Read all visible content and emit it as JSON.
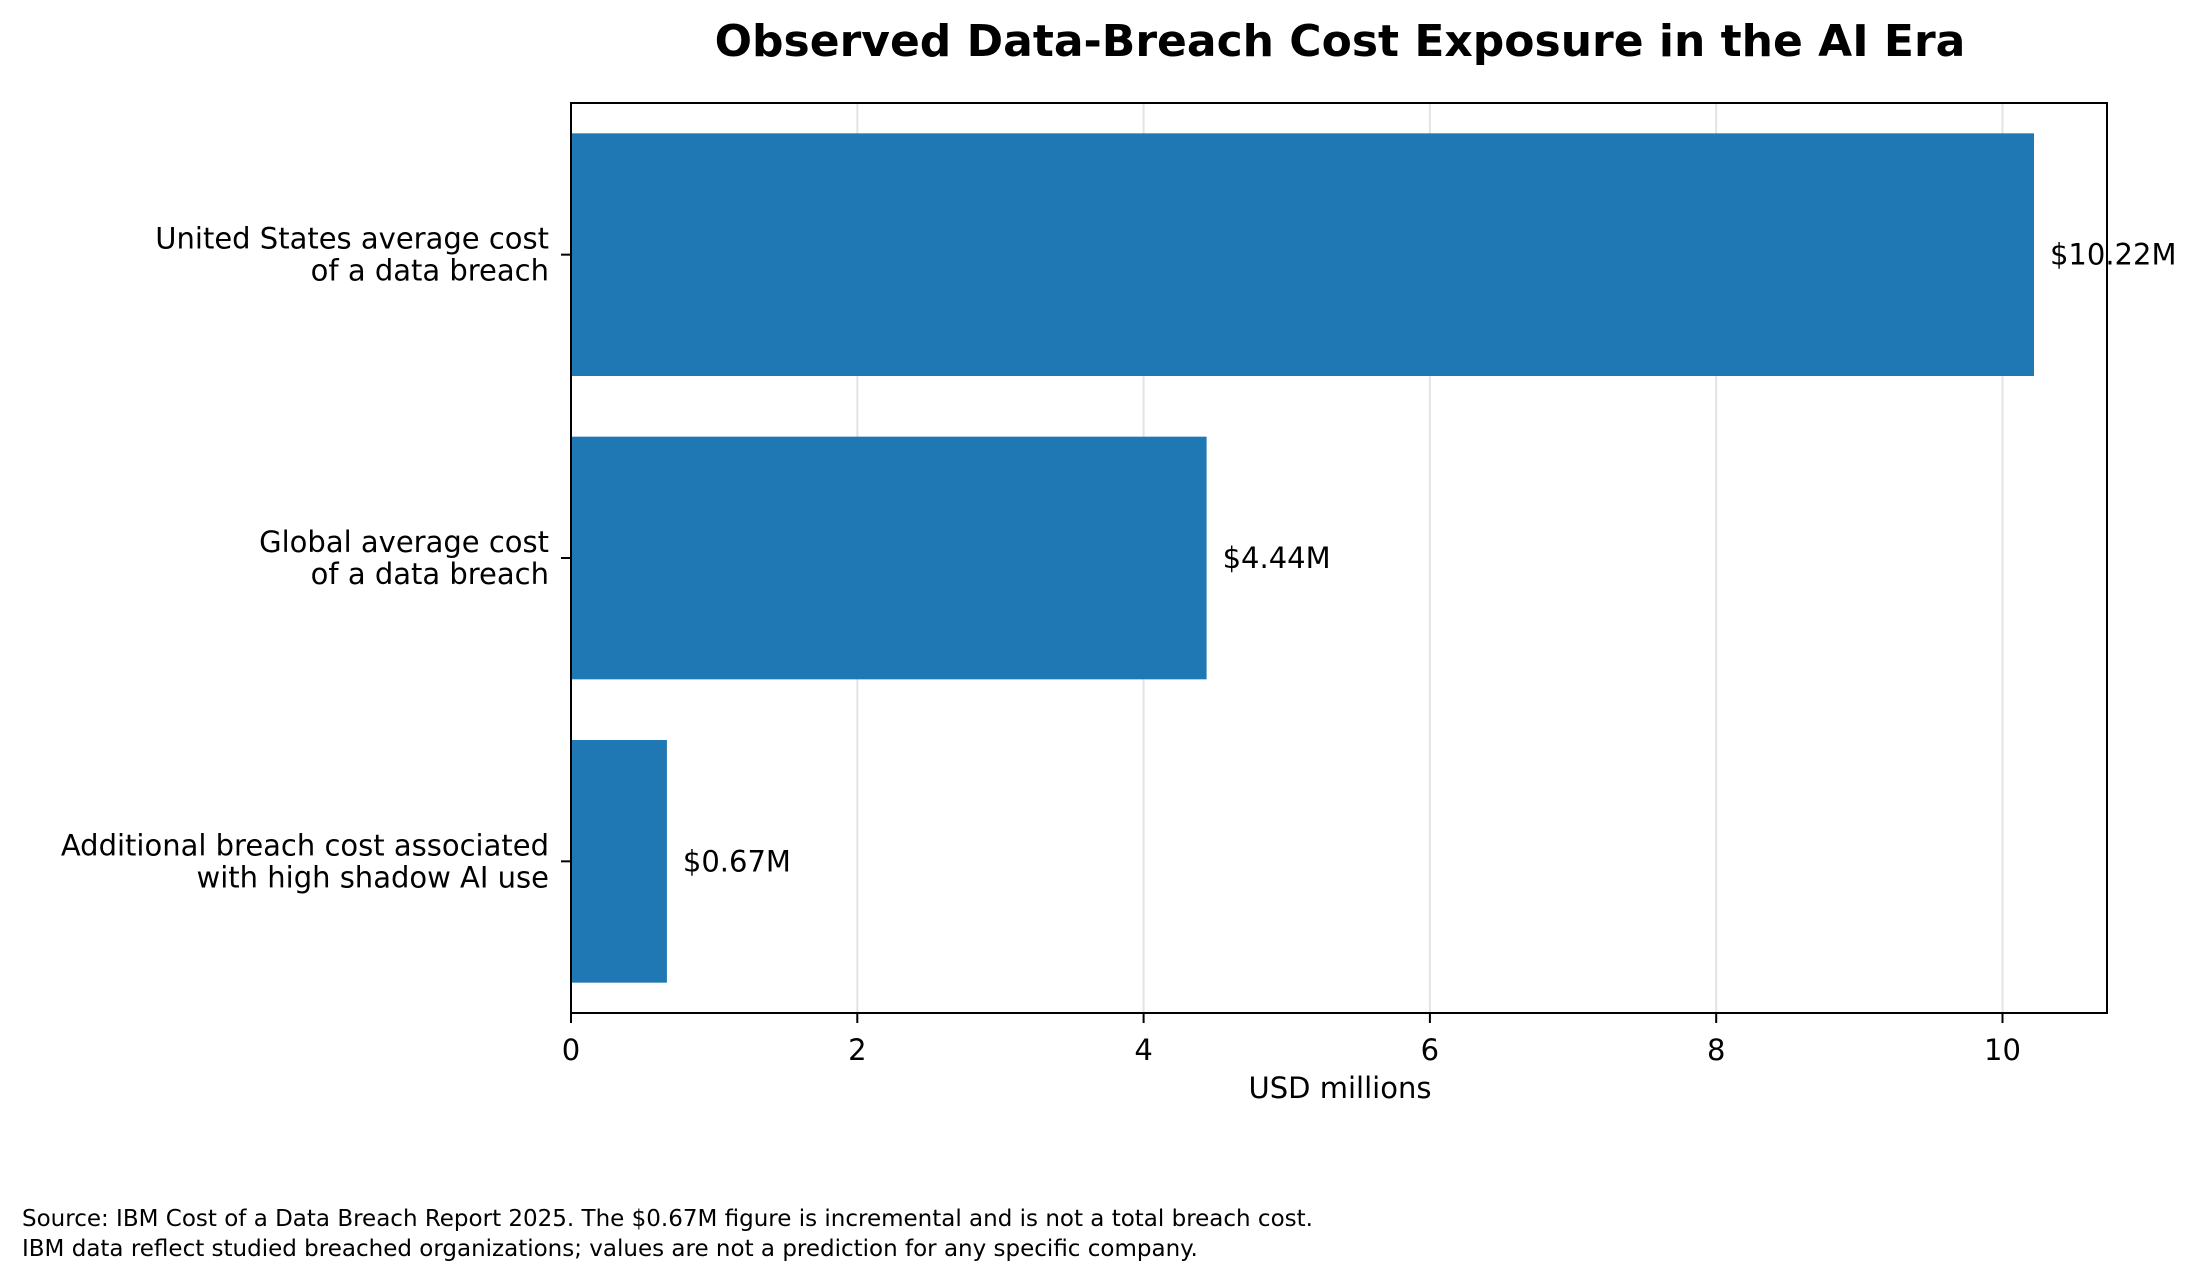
{
  "chart_data": {
    "type": "bar",
    "orientation": "horizontal",
    "title": "Observed Data-Breach Cost Exposure in the AI Era",
    "xlabel": "USD millions",
    "ylabel": "",
    "xlim": [
      0,
      10.73
    ],
    "xticks": [
      0,
      2,
      4,
      6,
      8,
      10
    ],
    "grid": "x",
    "categories": [
      [
        "United States average cost",
        "of a data breach"
      ],
      [
        "Global average cost",
        "of a data breach"
      ],
      [
        "Additional breach cost associated",
        "with high shadow AI use"
      ]
    ],
    "values": [
      10.22,
      4.44,
      0.67
    ],
    "data_labels": [
      "$10.22M",
      "$4.44M",
      "$0.67M"
    ],
    "bar_color": "#1f77b4"
  },
  "footnote": {
    "line1": "Source: IBM Cost of a Data Breach Report 2025. The $0.67M figure is incremental and is not a total breach cost.",
    "line2": "IBM data reflect studied breached organizations; values are not a prediction for any specific company."
  }
}
